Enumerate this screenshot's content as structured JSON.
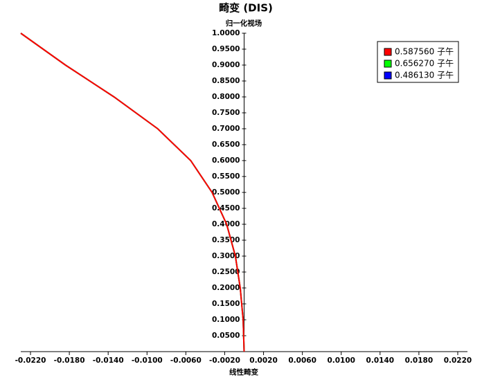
{
  "chart_data": {
    "type": "line",
    "title": "畸变 (DIS)",
    "y_label": "归一化视场",
    "x_label": "线性畸变",
    "y": [
      0,
      0.1,
      0.2,
      0.3,
      0.4,
      0.5,
      0.6,
      0.7,
      0.8,
      0.9,
      1.0
    ],
    "series": [
      {
        "name": "0.587560 子午",
        "color": "#ff0000",
        "x": [
          0,
          -0.0001,
          -0.0004,
          -0.0009,
          -0.0018,
          -0.0033,
          -0.0055,
          -0.0089,
          -0.0134,
          -0.0184,
          -0.023
        ]
      },
      {
        "name": "0.656270 子午",
        "color": "#00ff00",
        "x": [
          0,
          -0.0001,
          -0.0004,
          -0.0009,
          -0.0018,
          -0.0033,
          -0.0055,
          -0.0089,
          -0.0134,
          -0.0184,
          -0.023
        ]
      },
      {
        "name": "0.486130 子午",
        "color": "#0000ff",
        "x": [
          0,
          -0.0001,
          -0.0004,
          -0.0009,
          -0.0018,
          -0.0033,
          -0.0055,
          -0.0089,
          -0.0134,
          -0.0184,
          -0.023
        ]
      }
    ],
    "xlim": [
      -0.023,
      0.023
    ],
    "ylim": [
      0,
      1.0
    ],
    "xticks": [
      {
        "value": -0.022,
        "label": "-0.0220"
      },
      {
        "value": -0.018,
        "label": "-0.0180"
      },
      {
        "value": -0.014,
        "label": "-0.0140"
      },
      {
        "value": -0.01,
        "label": "-0.0100"
      },
      {
        "value": -0.006,
        "label": "-0.0060"
      },
      {
        "value": -0.002,
        "label": "-0.0020"
      },
      {
        "value": 0.002,
        "label": "0.0020"
      },
      {
        "value": 0.006,
        "label": "0.0060"
      },
      {
        "value": 0.01,
        "label": "0.0100"
      },
      {
        "value": 0.014,
        "label": "0.0140"
      },
      {
        "value": 0.018,
        "label": "0.0180"
      },
      {
        "value": 0.022,
        "label": "0.0220"
      }
    ],
    "yticks": [
      {
        "value": 0.05,
        "label": "0.0500"
      },
      {
        "value": 0.1,
        "label": "0.1000"
      },
      {
        "value": 0.15,
        "label": "0.1500"
      },
      {
        "value": 0.2,
        "label": "0.2000"
      },
      {
        "value": 0.25,
        "label": "0.2500"
      },
      {
        "value": 0.3,
        "label": "0.3000"
      },
      {
        "value": 0.35,
        "label": "0.3500"
      },
      {
        "value": 0.4,
        "label": "0.4000"
      },
      {
        "value": 0.45,
        "label": "0.4500"
      },
      {
        "value": 0.5,
        "label": "0.5000"
      },
      {
        "value": 0.55,
        "label": "0.5500"
      },
      {
        "value": 0.6,
        "label": "0.6000"
      },
      {
        "value": 0.65,
        "label": "0.6500"
      },
      {
        "value": 0.7,
        "label": "0.7000"
      },
      {
        "value": 0.75,
        "label": "0.7500"
      },
      {
        "value": 0.8,
        "label": "0.8000"
      },
      {
        "value": 0.85,
        "label": "0.8500"
      },
      {
        "value": 0.9,
        "label": "0.9000"
      },
      {
        "value": 0.95,
        "label": "0.9500"
      },
      {
        "value": 1.0,
        "label": "1.0000"
      }
    ],
    "legend": "upper right"
  }
}
